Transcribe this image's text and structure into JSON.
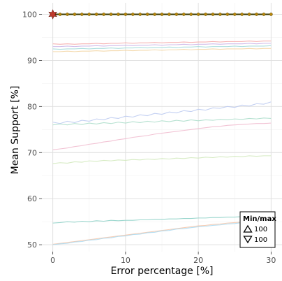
{
  "chart_data": {
    "type": "line",
    "xlabel": "Error percentage [%]",
    "ylabel": "Mean Support [%]",
    "xlim": [
      -1.5,
      31.5
    ],
    "ylim": [
      48.5,
      102.5
    ],
    "x_ticks": [
      0,
      10,
      20,
      30
    ],
    "y_ticks": [
      50,
      60,
      70,
      80,
      90,
      100
    ],
    "grid": true,
    "legend_placement": "bottom-right",
    "legend": {
      "title": "Min/max",
      "entries": [
        {
          "symbol": "triangle-up",
          "label": "100"
        },
        {
          "symbol": "triangle-down",
          "label": "100"
        }
      ]
    },
    "x": [
      0,
      1,
      2,
      3,
      4,
      5,
      6,
      7,
      8,
      9,
      10,
      11,
      12,
      13,
      14,
      15,
      16,
      17,
      18,
      19,
      20,
      21,
      22,
      23,
      24,
      25,
      26,
      27,
      28,
      29,
      30
    ],
    "highlight_series": {
      "values": [
        100,
        100,
        100,
        100,
        100,
        100,
        100,
        100,
        100,
        100,
        100,
        100,
        100,
        100,
        100,
        100,
        100,
        100,
        100,
        100,
        100,
        100,
        100,
        100,
        100,
        100,
        100,
        100,
        100,
        100,
        100
      ],
      "line_color": "#3a3a00",
      "marker_color": "#b8860b",
      "star_color": "#c0392b",
      "star_x": 0,
      "star_y": 100
    },
    "series": [
      {
        "values": [
          93.6,
          93.5,
          93.6,
          93.5,
          93.6,
          93.6,
          93.7,
          93.6,
          93.7,
          93.7,
          93.8,
          93.7,
          93.8,
          93.8,
          93.9,
          93.8,
          93.9,
          93.9,
          94.0,
          93.9,
          94.0,
          94.0,
          94.1,
          94.0,
          94.1,
          94.1,
          94.1,
          94.2,
          94.1,
          94.2,
          94.2
        ],
        "color": "#f4a6a6"
      },
      {
        "values": [
          93.0,
          93.0,
          93.1,
          93.0,
          93.1,
          93.1,
          93.2,
          93.1,
          93.2,
          93.2,
          93.3,
          93.2,
          93.3,
          93.3,
          93.4,
          93.3,
          93.4,
          93.4,
          93.5,
          93.4,
          93.5,
          93.5,
          93.6,
          93.5,
          93.6,
          93.6,
          93.6,
          93.7,
          93.6,
          93.7,
          93.7
        ],
        "color": "#c9b3e6"
      },
      {
        "values": [
          92.5,
          92.4,
          92.5,
          92.5,
          92.6,
          92.5,
          92.6,
          92.6,
          92.7,
          92.6,
          92.7,
          92.7,
          92.8,
          92.7,
          92.8,
          92.8,
          92.9,
          92.8,
          92.9,
          92.9,
          93.0,
          92.9,
          93.0,
          93.0,
          93.0,
          93.1,
          93.0,
          93.1,
          93.1,
          93.1,
          93.2
        ],
        "color": "#9fd8d8"
      },
      {
        "values": [
          91.9,
          91.9,
          92.0,
          91.9,
          92.0,
          92.0,
          92.1,
          92.0,
          92.1,
          92.1,
          92.2,
          92.1,
          92.2,
          92.2,
          92.3,
          92.2,
          92.3,
          92.3,
          92.4,
          92.3,
          92.4,
          92.4,
          92.5,
          92.4,
          92.5,
          92.5,
          92.5,
          92.6,
          92.5,
          92.6,
          92.6
        ],
        "color": "#f2d4a0"
      },
      {
        "values": [
          76.6,
          76.3,
          76.8,
          76.5,
          77.0,
          76.8,
          77.3,
          77.1,
          77.6,
          77.4,
          77.9,
          77.7,
          78.2,
          78.0,
          78.5,
          78.3,
          78.8,
          78.6,
          79.1,
          78.9,
          79.4,
          79.2,
          79.7,
          79.6,
          80.0,
          79.8,
          80.3,
          80.1,
          80.6,
          80.5,
          81.0
        ],
        "color": "#b8c8f0"
      },
      {
        "values": [
          76.0,
          76.2,
          76.0,
          76.3,
          76.1,
          76.4,
          76.2,
          76.5,
          76.3,
          76.6,
          76.4,
          76.7,
          76.5,
          76.8,
          76.6,
          76.9,
          76.7,
          77.0,
          76.8,
          77.1,
          76.9,
          77.1,
          77.0,
          77.2,
          77.1,
          77.3,
          77.2,
          77.4,
          77.3,
          77.5,
          77.4
        ],
        "color": "#a8dcc8"
      },
      {
        "values": [
          70.6,
          70.8,
          71.0,
          71.3,
          71.5,
          71.8,
          72.0,
          72.3,
          72.5,
          72.8,
          73.0,
          73.3,
          73.5,
          73.7,
          74.0,
          74.2,
          74.4,
          74.6,
          74.8,
          75.0,
          75.2,
          75.4,
          75.6,
          75.7,
          75.9,
          76.0,
          76.1,
          76.2,
          76.3,
          76.3,
          76.4
        ],
        "color": "#f0b8cc"
      },
      {
        "values": [
          67.6,
          67.8,
          67.7,
          68.0,
          67.9,
          68.2,
          68.1,
          68.3,
          68.2,
          68.4,
          68.3,
          68.5,
          68.4,
          68.6,
          68.5,
          68.7,
          68.6,
          68.8,
          68.7,
          68.9,
          68.8,
          69.0,
          68.9,
          69.1,
          69.0,
          69.2,
          69.1,
          69.3,
          69.2,
          69.3,
          69.3
        ],
        "color": "#cfe8b8"
      },
      {
        "values": [
          54.7,
          54.8,
          55.0,
          54.9,
          55.1,
          55.0,
          55.2,
          55.1,
          55.3,
          55.2,
          55.3,
          55.3,
          55.4,
          55.4,
          55.5,
          55.5,
          55.6,
          55.6,
          55.7,
          55.7,
          55.8,
          55.8,
          55.9,
          55.9,
          56.0,
          56.0,
          56.1,
          56.1,
          56.1,
          56.2,
          56.2
        ],
        "color": "#88cfc4"
      },
      {
        "values": [
          50.1,
          50.3,
          50.5,
          50.7,
          50.9,
          51.1,
          51.3,
          51.5,
          51.7,
          51.9,
          52.1,
          52.3,
          52.5,
          52.7,
          52.9,
          53.1,
          53.3,
          53.5,
          53.7,
          53.9,
          54.1,
          54.2,
          54.4,
          54.5,
          54.7,
          54.8,
          54.9,
          55.0,
          55.1,
          55.2,
          55.3
        ],
        "color": "#f4c4a8"
      },
      {
        "values": [
          50.0,
          50.2,
          50.3,
          50.6,
          50.7,
          51.0,
          51.1,
          51.4,
          51.5,
          51.8,
          51.9,
          52.2,
          52.3,
          52.6,
          52.7,
          53.0,
          53.1,
          53.4,
          53.5,
          53.7,
          53.9,
          54.0,
          54.2,
          54.3,
          54.5,
          54.6,
          54.8,
          54.9,
          55.0,
          55.1,
          55.2
        ],
        "color": "#a8d8f0"
      }
    ]
  }
}
